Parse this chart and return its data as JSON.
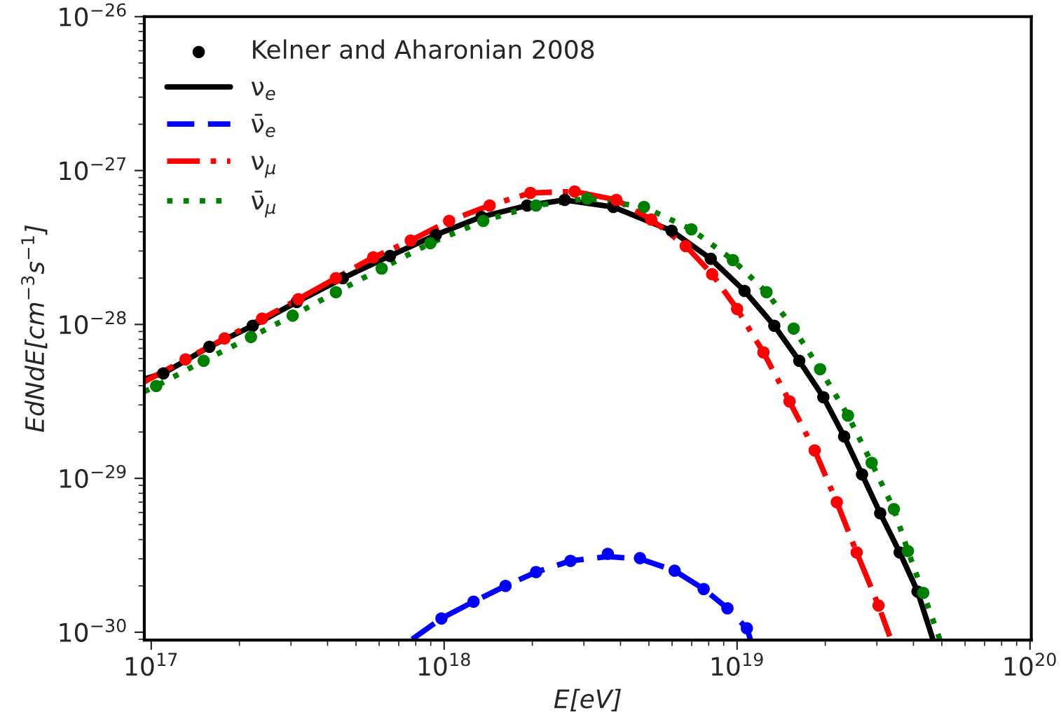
{
  "chart_data": {
    "type": "line",
    "xlabel": "E[eV]",
    "ylabel": "EdNdE[cm$^{−3}$s$^{−1}$]",
    "log": "xy",
    "grid": false,
    "legend": "top left",
    "xlim": [
      9.47e+16,
      1.01e+20
    ],
    "ylim": [
      8.9e-31,
      1e-26
    ],
    "xticks": [
      {
        "value": 1e+17,
        "label": "10$^{17}$"
      },
      {
        "value": 1e+18,
        "label": "10$^{18}$"
      },
      {
        "value": 1e+19,
        "label": "10$^{19}$"
      },
      {
        "value": 1e+20,
        "label": "10$^{20}$"
      }
    ],
    "yticks": [
      {
        "value": 1e-30,
        "label": "10$^{−30}$"
      },
      {
        "value": 1e-29,
        "label": "10$^{−29}$"
      },
      {
        "value": 1e-28,
        "label": "10$^{−28}$"
      },
      {
        "value": 1e-27,
        "label": "10$^{−27}$"
      },
      {
        "value": 1e-26,
        "label": "10$^{−26}$"
      }
    ],
    "series": [
      {
        "name": "Kelner and Aharonian 2008",
        "type": "scatter",
        "marker": "circle",
        "color": "#000000",
        "x": [
          1.1e+17,
          1.58e+17,
          2.22e+17,
          3.14e+17,
          4.51e+17,
          6.53e+17,
          9.37e+17,
          1.34e+18,
          1.92e+18,
          2.58e+18,
          3.78e+18,
          5.98e+18,
          8.13e+18,
          1.06e+19,
          1.34e+19,
          1.63e+19,
          1.97e+19,
          2.32e+19,
          2.67e+19,
          3.08e+19,
          3.59e+19,
          4.13e+19
        ],
        "values": [
          4.81e-29,
          7.16e-29,
          9.8e-29,
          1.4e-28,
          2e-28,
          2.79e-28,
          3.82e-28,
          5e-28,
          5.93e-28,
          6.44e-28,
          5.8e-28,
          4.06e-28,
          2.67e-28,
          1.65e-28,
          9.8e-29,
          5.8e-29,
          3.37e-29,
          1.87e-29,
          1.06e-29,
          5.93e-30,
          3.3e-30,
          1.84e-30
        ]
      },
      {
        "name": "ν$_{e}$",
        "line_style": "solid",
        "color": "#000000",
        "x": [
          9.47e+16,
          1.1e+17,
          1.58e+17,
          2.22e+17,
          3.14e+17,
          4.51e+17,
          6.53e+17,
          9.37e+17,
          1.34e+18,
          1.92e+18,
          2.58e+18,
          3.78e+18,
          5.98e+18,
          8.13e+18,
          1.06e+19,
          1.34e+19,
          1.63e+19,
          1.97e+19,
          2.32e+19,
          2.67e+19,
          3.08e+19,
          3.59e+19,
          4.13e+19,
          4.66e+19
        ],
        "values": [
          4.42e-29,
          4.81e-29,
          7.16e-29,
          9.8e-29,
          1.4e-28,
          2e-28,
          2.79e-28,
          3.82e-28,
          5e-28,
          5.93e-28,
          6.44e-28,
          5.8e-28,
          4.06e-28,
          2.67e-28,
          1.65e-28,
          9.8e-29,
          5.8e-29,
          3.37e-29,
          1.87e-29,
          1.06e-29,
          5.93e-30,
          3.3e-30,
          1.84e-30,
          9e-31
        ]
      },
      {
        "name": "ν̄$_{e}$",
        "line_style": "dashed",
        "color": "#0000ff",
        "x": [
          7.78e+17,
          9.79e+17,
          1.26e+18,
          1.62e+18,
          2.06e+18,
          2.7e+18,
          3.62e+18,
          4.66e+18,
          6.12e+18,
          7.69e+18,
          9.27e+18,
          1.08e+19,
          1.11e+19
        ],
        "values": [
          9e-31,
          1.23e-30,
          1.58e-30,
          2e-30,
          2.46e-30,
          2.91e-30,
          3.1e-30,
          3e-30,
          2.51e-30,
          1.91e-30,
          1.43e-30,
          1.06e-30,
          9e-31
        ]
      },
      {
        "name": "ν$_{μ}$",
        "line_style": "dashdot",
        "color": "#ff0000",
        "x": [
          9.47e+16,
          1.31e+17,
          1.78e+17,
          2.39e+17,
          3.18e+17,
          4.27e+17,
          5.73e+17,
          7.69e+17,
          1.04e+18,
          1.43e+18,
          1.97e+18,
          2.79e+18,
          3.87e+18,
          5.09e+18,
          6.68e+18,
          8.22e+18,
          1e+19,
          1.23e+19,
          1.51e+19,
          1.84e+19,
          2.19e+19,
          2.56e+19,
          3.04e+19,
          3.32e+19
        ],
        "values": [
          4.24e-29,
          5.93e-29,
          8.11e-29,
          1.09e-28,
          1.46e-28,
          2e-28,
          2.73e-28,
          3.51e-28,
          4.71e-28,
          5.93e-28,
          7.16e-28,
          7.31e-28,
          6.44e-28,
          4.81e-28,
          3.23e-28,
          2.12e-28,
          1.26e-28,
          6.58e-29,
          3.16e-29,
          1.52e-29,
          7e-30,
          3.3e-30,
          1.49e-30,
          9.4e-31
        ]
      },
      {
        "name": "ν̄$_{μ}$",
        "line_style": "dotted",
        "color": "#008000",
        "x": [
          9.47e+16,
          1.04e+17,
          1.51e+17,
          2.19e+17,
          3.04e+17,
          4.27e+17,
          6.12e+17,
          8.97e+17,
          1.36e+18,
          2.06e+18,
          3.08e+18,
          4.81e+18,
          6.98e+18,
          9.68e+18,
          1.26e+19,
          1.56e+19,
          1.92e+19,
          2.39e+19,
          2.88e+19,
          3.43e+19,
          3.83e+19,
          4.32e+19,
          4.92e+19
        ],
        "values": [
          3.66e-29,
          3.98e-29,
          5.8e-29,
          8.28e-29,
          1.14e-28,
          1.62e-28,
          2.31e-28,
          3.37e-28,
          4.71e-28,
          5.93e-28,
          6.58e-28,
          5.8e-28,
          4.15e-28,
          2.62e-28,
          1.62e-28,
          9.4e-29,
          5.12e-29,
          2.56e-29,
          1.26e-29,
          6.31e-30,
          3.37e-30,
          1.8e-30,
          9e-31
        ]
      },
      {
        "type": "scatter",
        "marker": "circle",
        "color": "#0000ff",
        "x": [
          9.79e+17,
          1.26e+18,
          1.62e+18,
          2.06e+18,
          2.7e+18,
          3.62e+18,
          4.66e+18,
          6.12e+18,
          7.69e+18,
          9.27e+18,
          1.08e+19
        ],
        "values": [
          1.23e-30,
          1.58e-30,
          2e-30,
          2.46e-30,
          2.91e-30,
          3.23e-30,
          3.03e-30,
          2.51e-30,
          1.91e-30,
          1.43e-30,
          1.06e-30
        ]
      },
      {
        "type": "scatter",
        "marker": "circle",
        "color": "#ff0000",
        "x": [
          1.31e+17,
          1.78e+17,
          2.39e+17,
          3.18e+17,
          4.27e+17,
          5.73e+17,
          7.69e+17,
          1.04e+18,
          1.43e+18,
          1.97e+18,
          2.79e+18,
          3.87e+18,
          5.09e+18,
          6.68e+18,
          8.22e+18,
          1e+19,
          1.23e+19,
          1.51e+19,
          1.84e+19,
          2.19e+19,
          2.56e+19,
          3.04e+19
        ],
        "values": [
          5.93e-29,
          8.11e-29,
          1.09e-28,
          1.46e-28,
          2e-28,
          2.73e-28,
          3.51e-28,
          4.71e-28,
          5.93e-28,
          7.16e-28,
          7.31e-28,
          6.44e-28,
          4.81e-28,
          3.23e-28,
          2.12e-28,
          1.26e-28,
          6.58e-29,
          3.16e-29,
          1.52e-29,
          7e-30,
          3.3e-30,
          1.49e-30
        ]
      },
      {
        "type": "scatter",
        "marker": "circle",
        "color": "#008000",
        "x": [
          1.04e+17,
          1.51e+17,
          2.19e+17,
          3.04e+17,
          4.27e+17,
          6.12e+17,
          8.97e+17,
          1.36e+18,
          2.06e+18,
          3.08e+18,
          4.81e+18,
          6.98e+18,
          9.68e+18,
          1.26e+19,
          1.56e+19,
          1.92e+19,
          2.39e+19,
          2.88e+19,
          3.43e+19,
          3.83e+19,
          4.32e+19
        ],
        "values": [
          3.98e-29,
          5.8e-29,
          8.28e-29,
          1.14e-28,
          1.62e-28,
          2.31e-28,
          3.37e-28,
          4.71e-28,
          5.93e-28,
          6.58e-28,
          5.8e-28,
          4.15e-28,
          2.62e-28,
          1.62e-28,
          9.4e-29,
          5.12e-29,
          2.56e-29,
          1.26e-29,
          6.31e-30,
          3.37e-30,
          1.8e-30
        ]
      }
    ]
  }
}
